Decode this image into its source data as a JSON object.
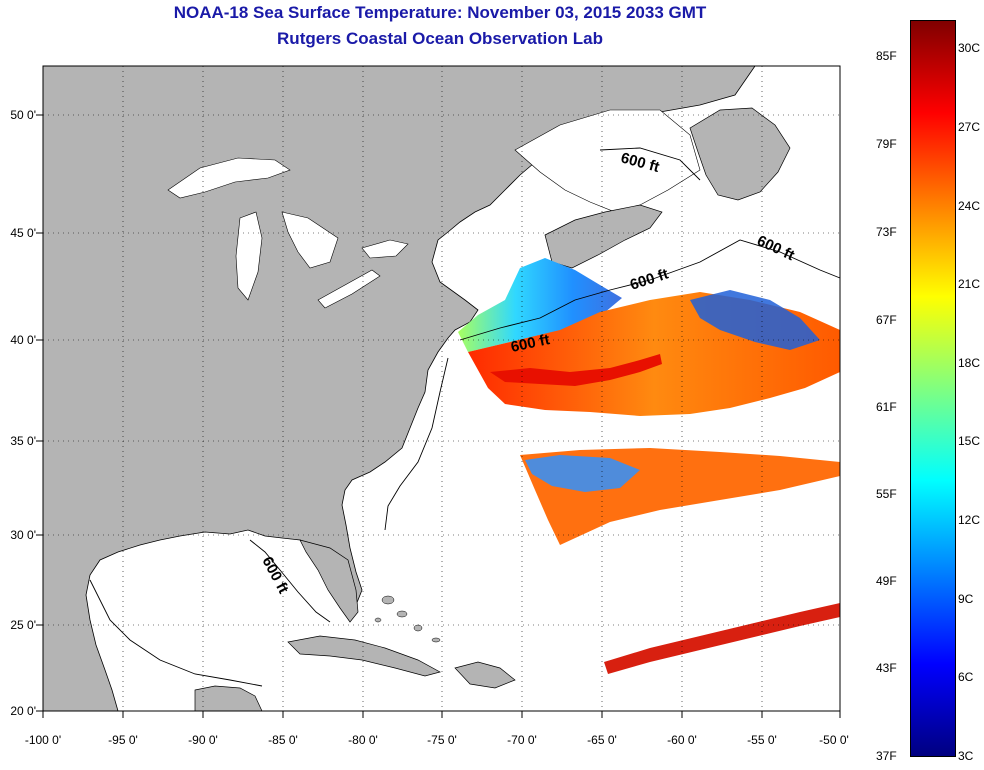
{
  "title_line1": "NOAA-18 Sea Surface Temperature:  November 03, 2015 2033 GMT",
  "title_line2": "Rutgers Coastal Ocean Observation Lab",
  "map": {
    "lon_range": [
      -100,
      -50
    ],
    "lat_range": [
      20,
      52
    ],
    "lat_labels": [
      "50 0'",
      "45 0'",
      "40 0'",
      "35 0'",
      "30 0'",
      "25 0'",
      "20 0'"
    ],
    "lon_labels": [
      "-100 0'",
      "-95 0'",
      "-90 0'",
      "-85 0'",
      "-80 0'",
      "-75 0'",
      "-70 0'",
      "-65 0'",
      "-60 0'",
      "-55 0'",
      "-50 0'"
    ],
    "isobath_label": "600 ft",
    "land_color": "#b4b4b4",
    "ocean_color": "#ffffff"
  },
  "colorbar": {
    "fahrenheit_labels": [
      "85F",
      "79F",
      "73F",
      "67F",
      "61F",
      "55F",
      "49F",
      "43F",
      "37F"
    ],
    "celsius_labels": [
      "30C",
      "27C",
      "24C",
      "21C",
      "18C",
      "15C",
      "12C",
      "9C",
      "6C",
      "3C"
    ],
    "colors": [
      "#800000",
      "#ff0000",
      "#ff8000",
      "#ffff00",
      "#80ff80",
      "#00ffff",
      "#0080ff",
      "#0000ff",
      "#000080"
    ]
  }
}
